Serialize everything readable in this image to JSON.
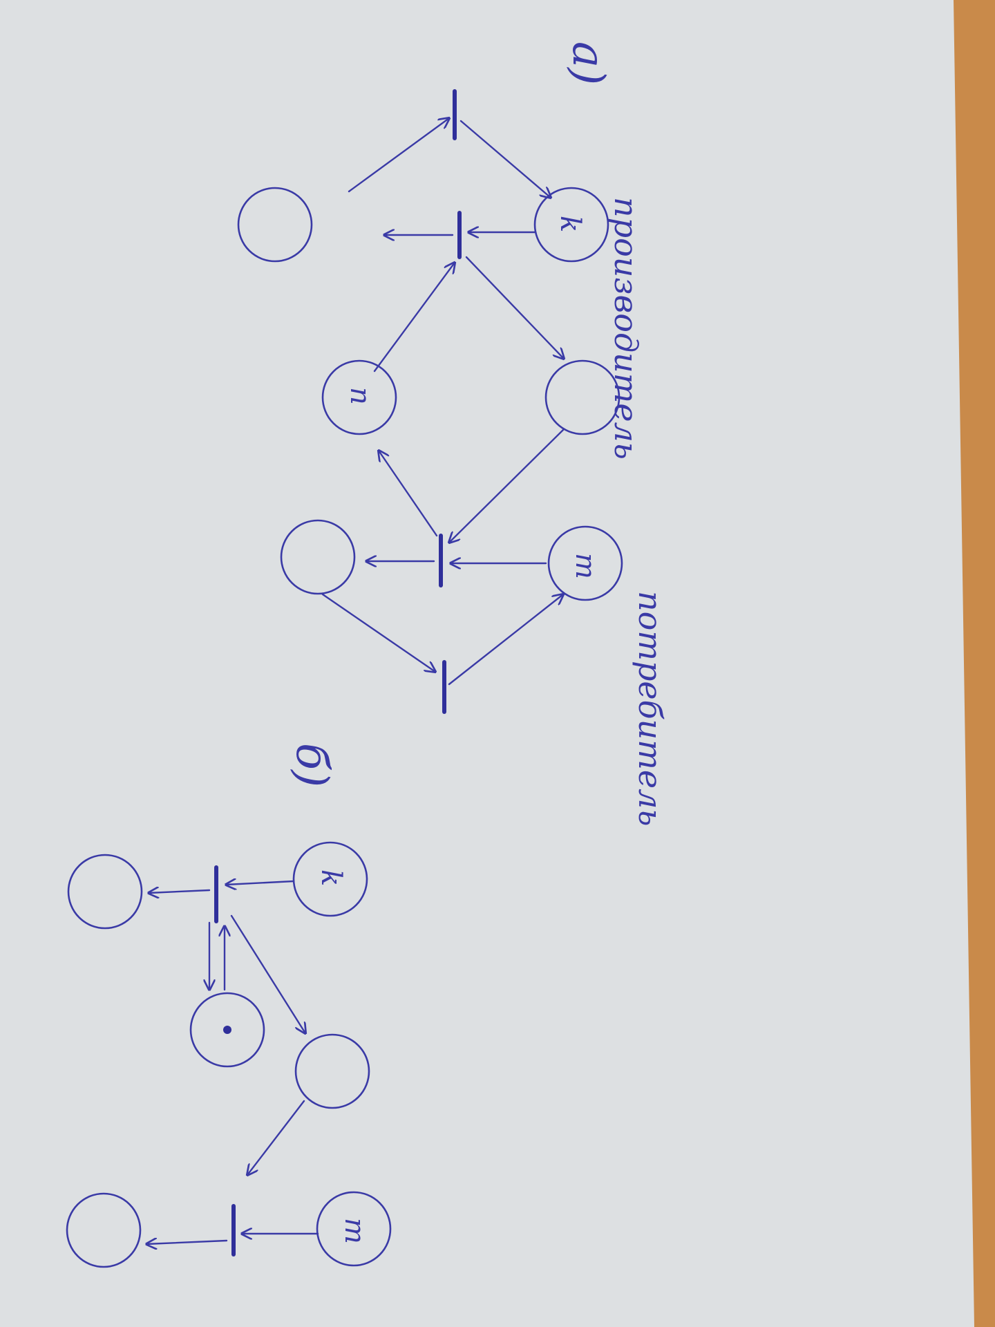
{
  "ink_color": "#3a3aa6",
  "paper_color": "#dde0e2",
  "desk_color": "#c98a4a",
  "diagram_a": {
    "part_label": "а)",
    "annotations": [
      "производитель",
      "потребитель"
    ],
    "place_labels": [
      "k",
      "n",
      "m"
    ]
  },
  "diagram_b": {
    "part_label": "б)",
    "place_labels": [
      "k",
      "m"
    ]
  }
}
